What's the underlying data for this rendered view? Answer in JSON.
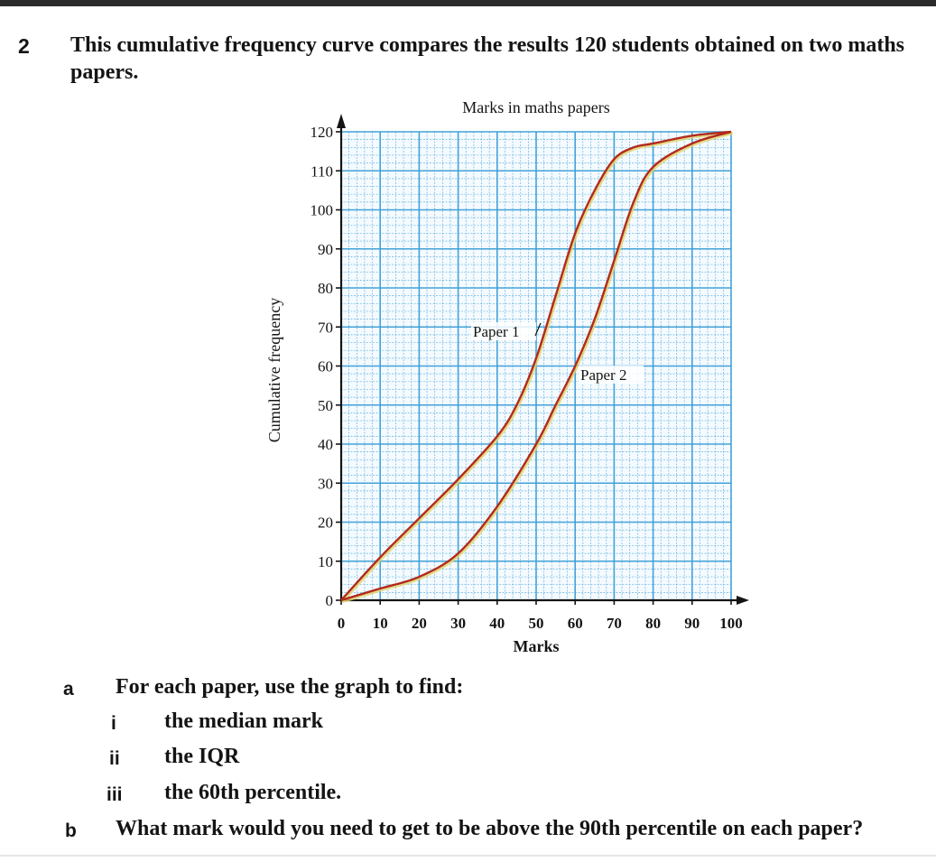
{
  "question": {
    "number": "2",
    "intro": "This cumulative frequency curve compares the results 120 students obtained on two maths papers."
  },
  "chart_data": {
    "type": "line",
    "title": "Marks in maths papers",
    "xlabel": "Marks",
    "ylabel": "Cumulative frequency",
    "xlim": [
      0,
      100
    ],
    "ylim": [
      0,
      120
    ],
    "x_ticks": [
      "0",
      "10",
      "20",
      "30",
      "40",
      "50",
      "60",
      "70",
      "80",
      "90",
      "100"
    ],
    "y_ticks": [
      "0",
      "10",
      "20",
      "30",
      "40",
      "50",
      "60",
      "70",
      "80",
      "90",
      "100",
      "110",
      "120"
    ],
    "grid": true,
    "grid_color": "#3a9ed8",
    "curve_color": "#b22a1e",
    "series": [
      {
        "name": "Paper 1",
        "x": [
          0,
          10,
          20,
          30,
          40,
          45,
          50,
          55,
          60,
          65,
          70,
          75,
          80,
          90,
          100
        ],
        "y": [
          0,
          11,
          21,
          31,
          42,
          50,
          62,
          78,
          94,
          105,
          113,
          116,
          117,
          119,
          120
        ]
      },
      {
        "name": "Paper 2",
        "x": [
          0,
          10,
          20,
          30,
          40,
          50,
          55,
          60,
          65,
          70,
          75,
          80,
          90,
          100
        ],
        "y": [
          0,
          3,
          6,
          12,
          24,
          40,
          50,
          60,
          72,
          87,
          102,
          111,
          117,
          120
        ]
      }
    ]
  },
  "parts": {
    "a": {
      "label": "a",
      "text": "For each paper, use the graph to find:",
      "items": [
        {
          "label": "i",
          "text": "the median mark"
        },
        {
          "label": "ii",
          "text": "the IQR"
        },
        {
          "label": "iii",
          "text": "the 60th percentile."
        }
      ]
    },
    "b": {
      "label": "b",
      "text": "What mark would you need to get to be above the 90th percentile on each paper?"
    }
  }
}
